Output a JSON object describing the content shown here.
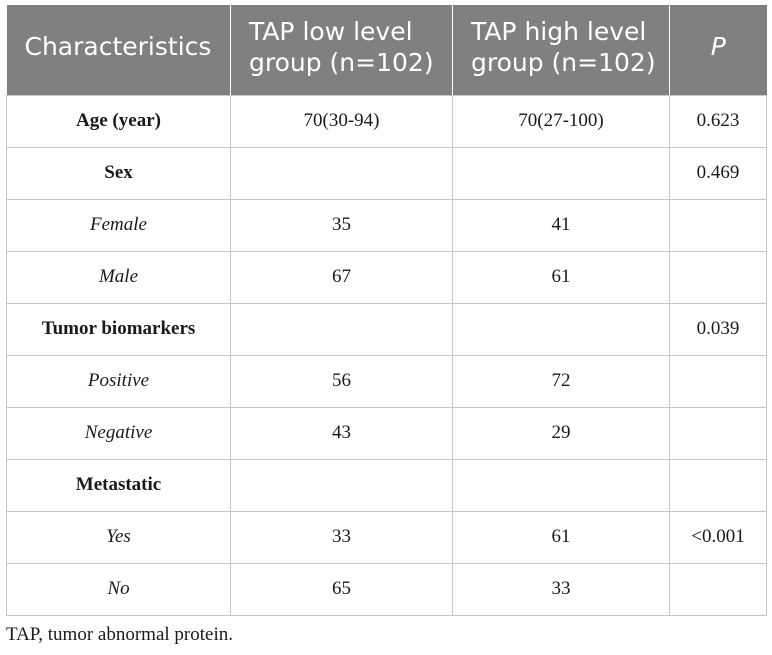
{
  "table": {
    "headers": [
      "Characteristics",
      "TAP low level group (n=102)",
      "TAP high level group (n=102)",
      "P"
    ],
    "rows": [
      {
        "label": "Age (year)",
        "style": "bold",
        "low": "70(30-94)",
        "high": "70(27-100)",
        "p": "0.623"
      },
      {
        "label": "Sex",
        "style": "bold",
        "low": "",
        "high": "",
        "p": "0.469"
      },
      {
        "label": "Female",
        "style": "italic",
        "low": "35",
        "high": "41",
        "p": ""
      },
      {
        "label": "Male",
        "style": "italic",
        "low": "67",
        "high": "61",
        "p": ""
      },
      {
        "label": "Tumor biomarkers",
        "style": "bold",
        "low": "",
        "high": "",
        "p": "0.039"
      },
      {
        "label": "Positive",
        "style": "italic",
        "low": "56",
        "high": "72",
        "p": ""
      },
      {
        "label": "Negative",
        "style": "italic",
        "low": "43",
        "high": "29",
        "p": ""
      },
      {
        "label": "Metastatic",
        "style": "bold",
        "low": "",
        "high": "",
        "p": ""
      },
      {
        "label": "Yes",
        "style": "italic",
        "low": "33",
        "high": "61",
        "p": "<0.001"
      },
      {
        "label": "No",
        "style": "italic",
        "low": "65",
        "high": "33",
        "p": ""
      }
    ]
  },
  "footnote": "TAP, tumor abnormal protein.",
  "colors": {
    "header_bg": "#808080",
    "header_text": "#ffffff",
    "border": "#c8c8c8",
    "body_text": "#1a1a1a"
  }
}
